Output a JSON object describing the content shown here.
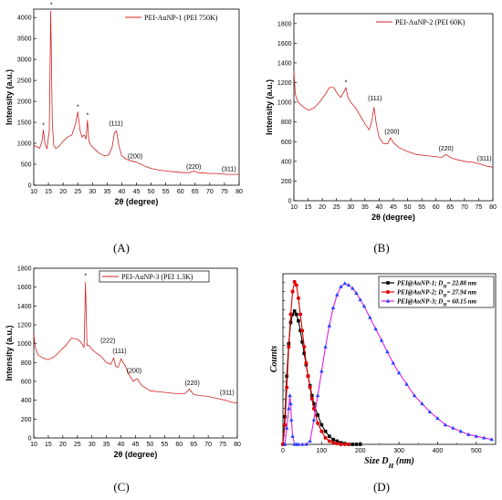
{
  "chart_data": [
    {
      "id": "A",
      "type": "line",
      "caption": "(A)",
      "xlabel": "2θ (degree)",
      "ylabel": "Intensity (a.u.)",
      "xlim": [
        10,
        80
      ],
      "ylim": [
        0,
        4200
      ],
      "xticks": [
        10,
        15,
        20,
        25,
        30,
        35,
        40,
        45,
        50,
        55,
        60,
        65,
        70,
        75,
        80
      ],
      "yticks": [
        0,
        500,
        1000,
        1500,
        2000,
        2500,
        3000,
        3500,
        4000
      ],
      "color": "#d42020",
      "series": [
        {
          "name": "PEI-AuNP-1 (PEI 750K)",
          "x": [
            10,
            11,
            12,
            12.8,
            13.3,
            13.8,
            14.5,
            15.3,
            15.8,
            16.3,
            16.8,
            17.5,
            18.5,
            20,
            21.5,
            23,
            24.2,
            25,
            25.8,
            26.5,
            27.2,
            27.8,
            28.3,
            28.8,
            29.5,
            30.5,
            32,
            34,
            35.5,
            36.7,
            37.5,
            38.2,
            39,
            40,
            41.5,
            43,
            44.5,
            46,
            48,
            50,
            52,
            55,
            58,
            61,
            63,
            64.5,
            66,
            68,
            70,
            72,
            74,
            76,
            78,
            80
          ],
          "y": [
            950,
            920,
            880,
            1050,
            1320,
            1000,
            870,
            1300,
            4150,
            1500,
            950,
            880,
            920,
            1050,
            1150,
            1200,
            1450,
            1750,
            1300,
            1150,
            1200,
            1100,
            1550,
            1050,
            950,
            880,
            780,
            700,
            720,
            900,
            1250,
            1300,
            950,
            700,
            620,
            580,
            560,
            520,
            450,
            400,
            370,
            340,
            320,
            300,
            300,
            340,
            300,
            290,
            280,
            280,
            270,
            260,
            260,
            260
          ]
        }
      ],
      "annotations": [
        {
          "text": "*",
          "x": 13.3,
          "y": 1380
        },
        {
          "text": "*",
          "x": 16,
          "y": 4250
        },
        {
          "text": "*",
          "x": 25,
          "y": 1820
        },
        {
          "text": "*",
          "x": 28.3,
          "y": 1620
        },
        {
          "text": "(111)",
          "x": 38,
          "y": 1420
        },
        {
          "text": "(200)",
          "x": 44.5,
          "y": 640
        },
        {
          "text": "(220)",
          "x": 64.5,
          "y": 390
        },
        {
          "text": "(311)",
          "x": 76.5,
          "y": 340
        }
      ],
      "legend": "top-right"
    },
    {
      "id": "B",
      "type": "line",
      "caption": "(B)",
      "xlabel": "2θ (degree)",
      "ylabel": "Intensity (a.u.)",
      "xlim": [
        10,
        80
      ],
      "ylim": [
        0,
        1900
      ],
      "xticks": [
        10,
        15,
        20,
        25,
        30,
        35,
        40,
        45,
        50,
        55,
        60,
        65,
        70,
        75,
        80
      ],
      "yticks": [
        0,
        200,
        400,
        600,
        800,
        1000,
        1200,
        1400,
        1600,
        1800
      ],
      "color": "#d42020",
      "series": [
        {
          "name": "PEI-AuNP-2 (PEI 60K)",
          "x": [
            10,
            10.5,
            11.5,
            13,
            15,
            17,
            19,
            21,
            22.5,
            24,
            25.5,
            26.5,
            27.5,
            28.3,
            29,
            30,
            31.5,
            33,
            35,
            36.5,
            37.5,
            38.2,
            39,
            40,
            41.5,
            43,
            44,
            45,
            47,
            50,
            53,
            56,
            59,
            62,
            63.5,
            65,
            67,
            70,
            73,
            76,
            78,
            80
          ],
          "y": [
            1300,
            1080,
            1000,
            960,
            920,
            940,
            1000,
            1080,
            1150,
            1150,
            1080,
            1050,
            1100,
            1150,
            1050,
            1000,
            950,
            880,
            780,
            720,
            820,
            950,
            780,
            640,
            580,
            580,
            640,
            590,
            540,
            500,
            470,
            460,
            450,
            440,
            470,
            440,
            420,
            400,
            390,
            370,
            350,
            340
          ]
        }
      ],
      "annotations": [
        {
          "text": "*",
          "x": 28.3,
          "y": 1180
        },
        {
          "text": "(111)",
          "x": 38.5,
          "y": 1020
        },
        {
          "text": "(200)",
          "x": 44.5,
          "y": 680
        },
        {
          "text": "(220)",
          "x": 63.5,
          "y": 510
        },
        {
          "text": "(311)",
          "x": 77,
          "y": 410
        }
      ],
      "legend": "top-right"
    },
    {
      "id": "C",
      "type": "line",
      "caption": "(C)",
      "xlabel": "2θ (degree)",
      "ylabel": "Intensity (a.u.)",
      "xlim": [
        10,
        80
      ],
      "ylim": [
        0,
        1800
      ],
      "xticks": [
        10,
        15,
        20,
        25,
        30,
        35,
        40,
        45,
        50,
        55,
        60,
        65,
        70,
        75,
        80
      ],
      "yticks": [
        0,
        200,
        400,
        600,
        800,
        1000,
        1200,
        1400,
        1600,
        1800
      ],
      "color": "#d42020",
      "series": [
        {
          "name": "PEI-AuNP-3 (PEI 1.3K)",
          "x": [
            10,
            10.5,
            11.5,
            13,
            15,
            17,
            19,
            21,
            23,
            24.5,
            25.5,
            26.5,
            27.3,
            27.8,
            28.3,
            29,
            30,
            31.5,
            33,
            35,
            36.5,
            37.5,
            38.2,
            39,
            40,
            41.5,
            43,
            44.2,
            45.5,
            47,
            50,
            53,
            56,
            59,
            62,
            63.5,
            65,
            67,
            70,
            73,
            76,
            78,
            80
          ],
          "y": [
            1100,
            960,
            880,
            850,
            830,
            860,
            920,
            980,
            1060,
            1050,
            1040,
            1000,
            960,
            1650,
            980,
            980,
            940,
            900,
            870,
            800,
            780,
            850,
            760,
            750,
            840,
            760,
            660,
            600,
            630,
            560,
            500,
            490,
            480,
            470,
            470,
            520,
            460,
            450,
            440,
            420,
            400,
            380,
            370
          ]
        }
      ],
      "annotations": [
        {
          "text": "*",
          "x": 27.8,
          "y": 1700
        },
        {
          "text": "(222)",
          "x": 35.5,
          "y": 1010
        },
        {
          "text": "(111)",
          "x": 39.5,
          "y": 900
        },
        {
          "text": "(200)",
          "x": 44.5,
          "y": 690
        },
        {
          "text": "(220)",
          "x": 64.5,
          "y": 560
        },
        {
          "text": "(311)",
          "x": 76.5,
          "y": 460
        }
      ],
      "legend": "top-right"
    },
    {
      "id": "D",
      "type": "line",
      "caption": "(D)",
      "xlabel": "Size D_H (nm)",
      "ylabel": "Counts",
      "xlim": [
        0,
        550
      ],
      "ylim": [
        0,
        1.05
      ],
      "xticks": [
        0,
        100,
        200,
        300,
        400,
        500
      ],
      "yticks": [],
      "legend": "top-right",
      "series": [
        {
          "name": "PEI@AuNP-1; D_H= 22.88 nm",
          "color": "#000000",
          "marker": "square",
          "x": [
            0,
            5,
            10,
            15,
            20,
            25,
            30,
            35,
            40,
            45,
            50,
            55,
            60,
            65,
            70,
            75,
            80,
            90,
            100,
            110,
            120,
            130,
            140,
            150,
            160,
            170,
            180,
            190,
            200
          ],
          "y": [
            0,
            0.17,
            0.42,
            0.62,
            0.75,
            0.8,
            0.82,
            0.8,
            0.76,
            0.7,
            0.63,
            0.56,
            0.49,
            0.42,
            0.36,
            0.3,
            0.25,
            0.18,
            0.12,
            0.08,
            0.05,
            0.03,
            0.02,
            0.01,
            0.005,
            0,
            0,
            0,
            0
          ]
        },
        {
          "name": "PEI@AuNP-2; D_H= 27.94 nm",
          "color": "#e00000",
          "marker": "circle",
          "x": [
            0,
            5,
            10,
            15,
            20,
            25,
            30,
            35,
            40,
            45,
            50,
            55,
            60,
            65,
            70,
            75,
            80,
            90,
            100,
            110,
            120,
            130,
            140,
            150,
            160,
            170
          ],
          "y": [
            0,
            0.12,
            0.35,
            0.6,
            0.8,
            0.94,
            1.0,
            0.98,
            0.9,
            0.8,
            0.7,
            0.6,
            0.5,
            0.42,
            0.35,
            0.28,
            0.22,
            0.13,
            0.08,
            0.04,
            0.02,
            0.01,
            0.005,
            0,
            0,
            0
          ]
        },
        {
          "name": "PEI@AuNP-3; D_H= 60.15 nm",
          "color": "#e020e0",
          "marker": "triangle",
          "x": [
            5,
            10,
            15,
            18,
            20,
            22,
            25,
            30,
            35,
            40,
            50,
            60,
            70,
            80,
            90,
            100,
            110,
            120,
            130,
            140,
            150,
            160,
            170,
            180,
            190,
            200,
            210,
            225,
            240,
            255,
            270,
            285,
            300,
            320,
            340,
            360,
            380,
            400,
            420,
            440,
            460,
            480,
            500,
            520,
            540
          ],
          "y": [
            0,
            0.1,
            0.22,
            0.3,
            0.25,
            0.15,
            0.05,
            0,
            0,
            0,
            0,
            0,
            0.02,
            0.15,
            0.3,
            0.45,
            0.6,
            0.73,
            0.84,
            0.92,
            0.97,
            0.99,
            0.98,
            0.96,
            0.93,
            0.89,
            0.85,
            0.78,
            0.71,
            0.64,
            0.57,
            0.5,
            0.44,
            0.37,
            0.3,
            0.25,
            0.2,
            0.16,
            0.12,
            0.1,
            0.08,
            0.06,
            0.05,
            0.04,
            0.03
          ]
        }
      ]
    }
  ]
}
